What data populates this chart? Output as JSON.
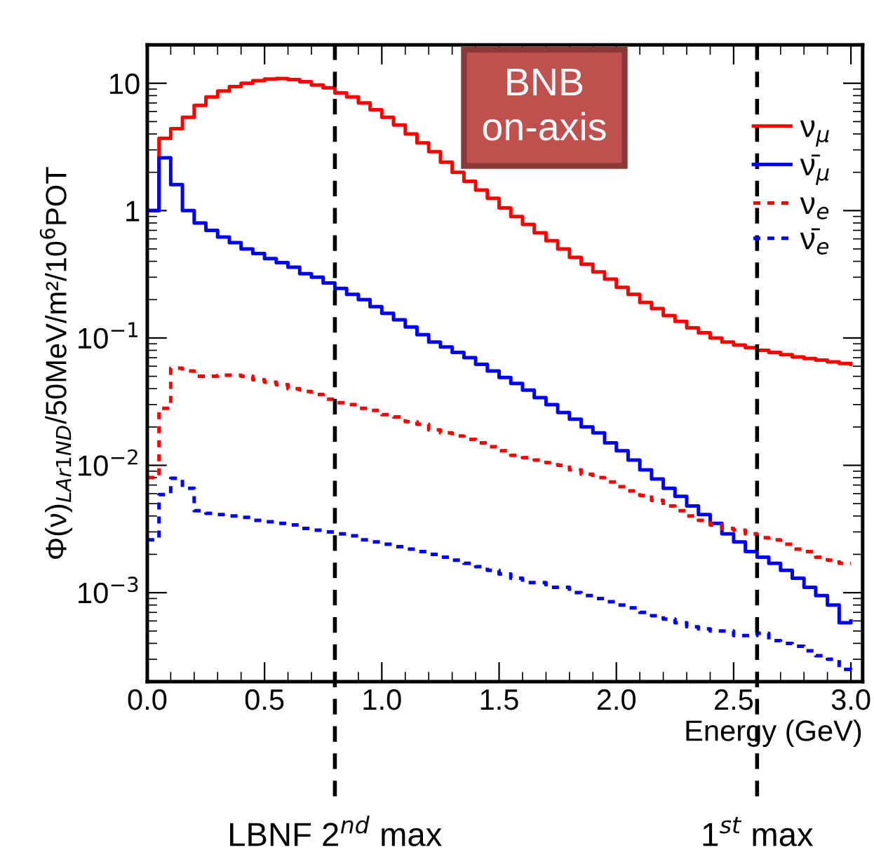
{
  "chart_data": {
    "type": "step",
    "xlabel": "Energy (GeV)",
    "ylabel": "Φ(ν)$_{LAr1ND}$/50MeV/m²/10$^{6}$POT",
    "annotations": [
      "BNB\non-axis"
    ],
    "x": [
      0,
      0.05,
      0.1,
      0.15,
      0.2,
      0.25,
      0.3,
      0.35,
      0.4,
      0.45,
      0.5,
      0.55,
      0.6,
      0.65,
      0.7,
      0.75,
      0.8,
      0.85,
      0.9,
      0.95,
      1.0,
      1.05,
      1.1,
      1.15,
      1.2,
      1.25,
      1.3,
      1.35,
      1.4,
      1.45,
      1.5,
      1.55,
      1.6,
      1.65,
      1.7,
      1.75,
      1.8,
      1.85,
      1.9,
      1.95,
      2.0,
      2.05,
      2.1,
      2.15,
      2.2,
      2.25,
      2.3,
      2.35,
      2.4,
      2.45,
      2.5,
      2.55,
      2.6,
      2.65,
      2.7,
      2.75,
      2.8,
      2.85,
      2.9,
      2.95,
      3.0
    ],
    "series": [
      {
        "name": "ν$_{μ}$",
        "color": "#ff0000",
        "line_style": "solid",
        "values": [
          1.0,
          3.7,
          4.4,
          5.4,
          6.7,
          7.8,
          8.7,
          9.4,
          10,
          10.5,
          10.8,
          10.9,
          10.7,
          10.3,
          9.7,
          9.2,
          8.4,
          7.8,
          7.0,
          6.2,
          5.4,
          4.7,
          4.0,
          3.4,
          2.9,
          2.4,
          2.0,
          1.7,
          1.45,
          1.25,
          1.05,
          0.9,
          0.78,
          0.67,
          0.58,
          0.5,
          0.43,
          0.38,
          0.33,
          0.29,
          0.25,
          0.22,
          0.19,
          0.17,
          0.15,
          0.135,
          0.12,
          0.11,
          0.1,
          0.093,
          0.088,
          0.084,
          0.08,
          0.077,
          0.074,
          0.071,
          0.069,
          0.067,
          0.065,
          0.063,
          0.062
        ]
      },
      {
        "name": "ν̄$_{μ}$",
        "color": "#0000ff",
        "line_style": "solid",
        "values": [
          1.0,
          2.6,
          1.6,
          1.0,
          0.8,
          0.7,
          0.62,
          0.56,
          0.5,
          0.46,
          0.42,
          0.39,
          0.36,
          0.32,
          0.3,
          0.27,
          0.245,
          0.22,
          0.2,
          0.176,
          0.156,
          0.139,
          0.122,
          0.106,
          0.093,
          0.085,
          0.077,
          0.07,
          0.062,
          0.055,
          0.049,
          0.044,
          0.039,
          0.034,
          0.03,
          0.026,
          0.023,
          0.02,
          0.018,
          0.015,
          0.013,
          0.011,
          0.0092,
          0.0078,
          0.0066,
          0.0057,
          0.0048,
          0.0041,
          0.0035,
          0.0029,
          0.0025,
          0.0021,
          0.0019,
          0.0017,
          0.0015,
          0.0013,
          0.0011,
          0.00095,
          0.0008,
          0.00058,
          0.0006
        ]
      },
      {
        "name": "ν$_{e}$",
        "color": "#ff0000",
        "line_style": "dotted",
        "values": [
          0.008,
          0.028,
          0.058,
          0.055,
          0.05,
          0.05,
          0.051,
          0.051,
          0.05,
          0.047,
          0.045,
          0.043,
          0.04,
          0.038,
          0.036,
          0.033,
          0.031,
          0.03,
          0.028,
          0.027,
          0.025,
          0.024,
          0.022,
          0.021,
          0.019,
          0.018,
          0.017,
          0.016,
          0.015,
          0.014,
          0.013,
          0.012,
          0.0115,
          0.011,
          0.0105,
          0.01,
          0.0092,
          0.0085,
          0.008,
          0.0074,
          0.0068,
          0.0063,
          0.0058,
          0.0053,
          0.0048,
          0.0044,
          0.004,
          0.0037,
          0.0034,
          0.0032,
          0.0031,
          0.0029,
          0.0027,
          0.0026,
          0.0024,
          0.0022,
          0.0021,
          0.0019,
          0.0018,
          0.0017,
          0.0017
        ]
      },
      {
        "name": "ν̄$_{e}$",
        "color": "#0000ff",
        "line_style": "dotted",
        "values": [
          0.0026,
          0.0059,
          0.0079,
          0.0066,
          0.0044,
          0.0042,
          0.0041,
          0.004,
          0.0039,
          0.0037,
          0.0036,
          0.0035,
          0.0034,
          0.0032,
          0.0031,
          0.003,
          0.0029,
          0.0028,
          0.0026,
          0.0025,
          0.0024,
          0.0023,
          0.0022,
          0.0021,
          0.002,
          0.0019,
          0.0018,
          0.0017,
          0.0016,
          0.0015,
          0.0014,
          0.0013,
          0.0012,
          0.0012,
          0.0011,
          0.0011,
          0.001,
          0.00095,
          0.0009,
          0.00085,
          0.0008,
          0.00076,
          0.0007,
          0.00066,
          0.00062,
          0.00058,
          0.00054,
          0.00052,
          0.0005,
          0.0005,
          0.00046,
          0.00046,
          0.00048,
          0.00042,
          0.0004,
          0.00038,
          0.00035,
          0.00032,
          0.0003,
          0.00025,
          0.00024
        ]
      }
    ],
    "log": "y",
    "xlim": [
      0,
      3.05
    ],
    "xticks": [
      {
        "value": 0,
        "label": "0.0"
      },
      0.5,
      {
        "value": 1,
        "label": "1.0"
      },
      1.5,
      {
        "value": 2,
        "label": "2.0"
      },
      2.5,
      {
        "value": 3,
        "label": "3.0"
      }
    ],
    "ylim": [
      0.0002,
      20
    ],
    "yticks": [
      {
        "value": 0.001,
        "label": "10$^{−3}$"
      },
      {
        "value": 0.01,
        "label": "10$^{−2}$"
      },
      {
        "value": 0.1,
        "label": "10$^{−1}$"
      },
      1,
      10
    ],
    "ref_lines": [
      {
        "axis": "x",
        "value": 0.8,
        "label": "LBNF 2$^{nd}$ max",
        "color": "#000000",
        "line_style": "dashed"
      },
      {
        "axis": "x",
        "value": 2.6,
        "label": "1$^{st}$ max",
        "color": "#000000",
        "line_style": "dashed"
      }
    ],
    "legend": "top right",
    "grid": false
  }
}
